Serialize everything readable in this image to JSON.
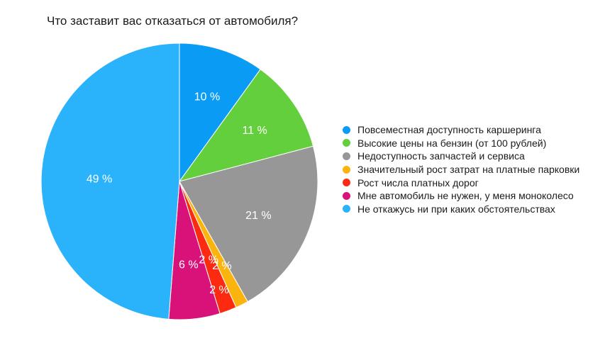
{
  "chart_data": {
    "type": "pie",
    "title": "Что заставит вас отказаться от автомобиля?",
    "start_angle_deg": 0,
    "direction": "clockwise",
    "legend_position": "right",
    "slices": [
      {
        "label": "Повсеместная доступность каршеринга",
        "value": 10,
        "display": "10 %",
        "color": "#0a9bf5"
      },
      {
        "label": "Высокие цены на бензин (от 100 рублей)",
        "value": 11,
        "display": "11 %",
        "color": "#64cf3c"
      },
      {
        "label": "Недоступность запчастей и сервиса",
        "value": 21,
        "display": "21 %",
        "color": "#979797"
      },
      {
        "label": "Значительный рост затрат на платные парковки",
        "value": 1.5,
        "display": "",
        "color": "#fbb40d"
      },
      {
        "label": "Рост числа платных дорог",
        "value": 2,
        "display": "2 %",
        "color": "#fb2a10"
      },
      {
        "label": "Мне автомобиль не нужен, у меня моноколесо",
        "value": 6,
        "display": "6 %",
        "color": "#d9127a"
      },
      {
        "label": "Не откажусь ни при каких обстоятельствах",
        "value": 49,
        "display": "49 %",
        "color": "#2ab2fb"
      }
    ],
    "annotations": [
      "2 %",
      "2 %"
    ]
  }
}
